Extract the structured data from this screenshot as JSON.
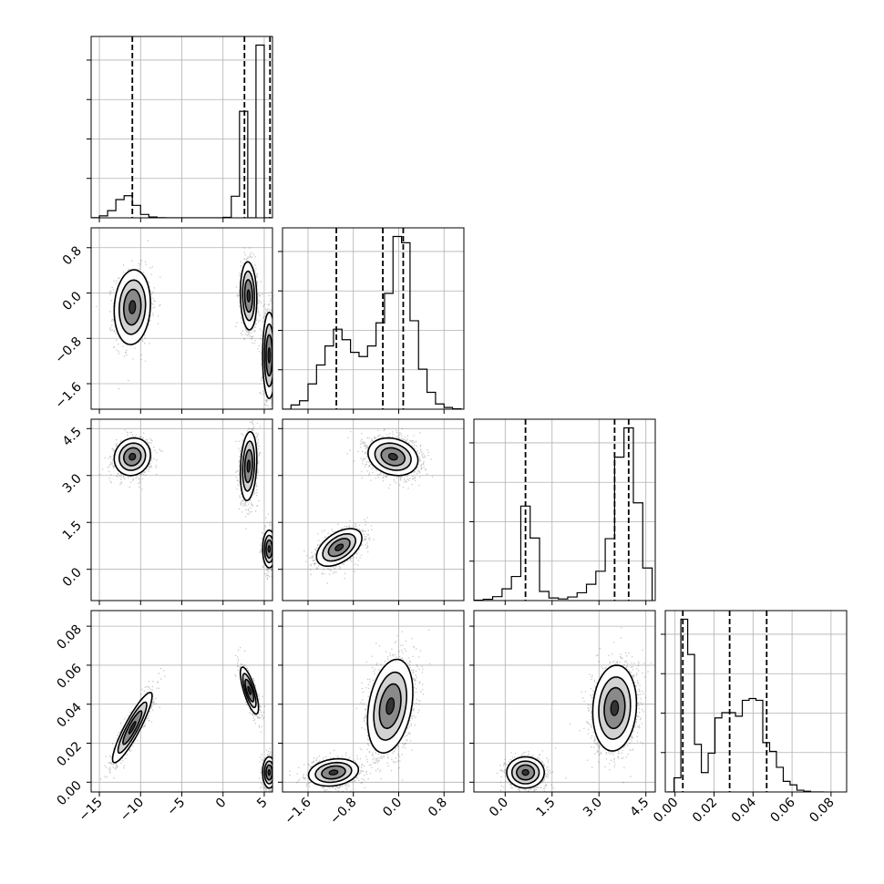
{
  "chart_data": {
    "type": "corner",
    "title": "",
    "parameters": [
      {
        "range": [
          -16,
          6
        ],
        "ticks": [
          -15,
          -10,
          -5,
          0,
          5
        ],
        "tick_labels": [
          "−15",
          "−10",
          "−5",
          "0",
          "5"
        ]
      },
      {
        "range": [
          -2.05,
          1.15
        ],
        "ticks": [
          -1.6,
          -0.8,
          0.0,
          0.8
        ],
        "tick_labels": [
          "−1.6",
          "−0.8",
          "0.0",
          "0.8"
        ]
      },
      {
        "range": [
          -1.0,
          4.8
        ],
        "ticks": [
          0.0,
          1.5,
          3.0,
          4.5
        ],
        "tick_labels": [
          "0.0",
          "1.5",
          "3.0",
          "4.5"
        ]
      },
      {
        "range": [
          -0.005,
          0.088
        ],
        "ticks": [
          0.0,
          0.02,
          0.04,
          0.06,
          0.08
        ],
        "tick_labels": [
          "0.00",
          "0.02",
          "0.04",
          "0.06",
          "0.08"
        ]
      }
    ],
    "histograms": [
      {
        "param": 0,
        "edges": [
          -16.0,
          -15.0,
          -14.0,
          -13.0,
          -12.0,
          -11.0,
          -10.0,
          -9.0,
          -8.0,
          -7.0,
          -6.0,
          -5.0,
          -4.0,
          -3.0,
          -2.0,
          -1.0,
          0.0,
          1.0,
          2.0,
          3.0,
          4.0,
          5.0,
          6.0
        ],
        "counts": [
          2,
          20,
          75,
          190,
          230,
          130,
          35,
          8,
          2,
          0,
          0,
          0,
          0,
          0,
          0,
          0,
          5,
          225,
          1110,
          0,
          1800,
          0
        ],
        "quantiles": [
          -11.0,
          2.6,
          5.7
        ]
      },
      {
        "param": 1,
        "edges": [
          -2.05,
          -1.9,
          -1.75,
          -1.6,
          -1.45,
          -1.3,
          -1.15,
          -1.0,
          -0.85,
          -0.7,
          -0.55,
          -0.4,
          -0.25,
          -0.1,
          0.05,
          0.2,
          0.35,
          0.5,
          0.65,
          0.8,
          0.95,
          1.1
        ],
        "counts": [
          0,
          20,
          40,
          120,
          210,
          300,
          380,
          330,
          270,
          250,
          300,
          410,
          550,
          820,
          790,
          420,
          190,
          80,
          25,
          8,
          2
        ],
        "quantiles": [
          -1.1,
          -0.28,
          0.08
        ]
      },
      {
        "param": 2,
        "edges": [
          -1.0,
          -0.7,
          -0.4,
          -0.1,
          0.2,
          0.5,
          0.8,
          1.1,
          1.4,
          1.7,
          2.0,
          2.3,
          2.6,
          2.9,
          3.2,
          3.5,
          3.8,
          4.1,
          4.4,
          4.7
        ],
        "counts": [
          5,
          20,
          60,
          180,
          370,
          1450,
          960,
          140,
          40,
          25,
          55,
          120,
          250,
          450,
          950,
          2200,
          2650,
          1500,
          500
        ],
        "quantiles": [
          0.65,
          3.5,
          3.95
        ]
      },
      {
        "param": 3,
        "edges": [
          -0.004,
          -0.0005,
          0.003,
          0.0065,
          0.01,
          0.0135,
          0.017,
          0.0205,
          0.024,
          0.0275,
          0.031,
          0.0345,
          0.038,
          0.0415,
          0.045,
          0.0485,
          0.052,
          0.0555,
          0.059,
          0.0625,
          0.066,
          0.0695,
          0.073,
          0.0765
        ],
        "counts": [
          0,
          40,
          490,
          390,
          135,
          55,
          110,
          210,
          225,
          225,
          215,
          260,
          265,
          260,
          140,
          115,
          70,
          30,
          20,
          5,
          2,
          0,
          0
        ],
        "quantiles": [
          0.004,
          0.028,
          0.047
        ]
      }
    ],
    "pairs": [
      {
        "x_param": 0,
        "y_param": 1,
        "modes": [
          {
            "center": [
              -11.0,
              -0.25
            ],
            "spread": [
              1.1,
              0.33
            ],
            "corr": 0.1,
            "weight": 0.3
          },
          {
            "center": [
              3.1,
              -0.05
            ],
            "spread": [
              0.5,
              0.3
            ],
            "corr": -0.1,
            "weight": 0.32
          },
          {
            "center": [
              5.6,
              -1.1
            ],
            "spread": [
              0.4,
              0.38
            ],
            "corr": 0.0,
            "weight": 0.38
          }
        ]
      },
      {
        "x_param": 0,
        "y_param": 2,
        "modes": [
          {
            "center": [
              -11.0,
              3.6
            ],
            "spread": [
              1.1,
              0.3
            ],
            "corr": 0.1,
            "weight": 0.3
          },
          {
            "center": [
              3.1,
              3.3
            ],
            "spread": [
              0.5,
              0.55
            ],
            "corr": 0.2,
            "weight": 0.32
          },
          {
            "center": [
              5.6,
              0.65
            ],
            "spread": [
              0.4,
              0.3
            ],
            "corr": 0.0,
            "weight": 0.38
          }
        ]
      },
      {
        "x_param": 0,
        "y_param": 3,
        "modes": [
          {
            "center": [
              -11.0,
              0.028
            ],
            "spread": [
              1.2,
              0.009
            ],
            "corr": 0.9,
            "weight": 0.3
          },
          {
            "center": [
              3.2,
              0.047
            ],
            "spread": [
              0.55,
              0.006
            ],
            "corr": -0.75,
            "weight": 0.32
          },
          {
            "center": [
              5.6,
              0.005
            ],
            "spread": [
              0.4,
              0.004
            ],
            "corr": 0.0,
            "weight": 0.38
          }
        ]
      },
      {
        "x_param": 1,
        "y_param": 2,
        "modes": [
          {
            "center": [
              -1.05,
              0.7
            ],
            "spread": [
              0.2,
              0.3
            ],
            "corr": 0.5,
            "weight": 0.38
          },
          {
            "center": [
              -0.1,
              3.6
            ],
            "spread": [
              0.22,
              0.3
            ],
            "corr": -0.2,
            "weight": 0.62
          }
        ]
      },
      {
        "x_param": 1,
        "y_param": 3,
        "modes": [
          {
            "center": [
              -1.15,
              0.005
            ],
            "spread": [
              0.22,
              0.0035
            ],
            "corr": 0.2,
            "weight": 0.38
          },
          {
            "center": [
              -0.15,
              0.039
            ],
            "spread": [
              0.2,
              0.012
            ],
            "corr": 0.3,
            "weight": 0.62
          }
        ]
      },
      {
        "x_param": 2,
        "y_param": 3,
        "modes": [
          {
            "center": [
              0.65,
              0.005
            ],
            "spread": [
              0.3,
              0.004
            ],
            "corr": 0.0,
            "weight": 0.38
          },
          {
            "center": [
              3.5,
              0.038
            ],
            "spread": [
              0.35,
              0.011
            ],
            "corr": 0.1,
            "weight": 0.62
          }
        ]
      }
    ]
  }
}
